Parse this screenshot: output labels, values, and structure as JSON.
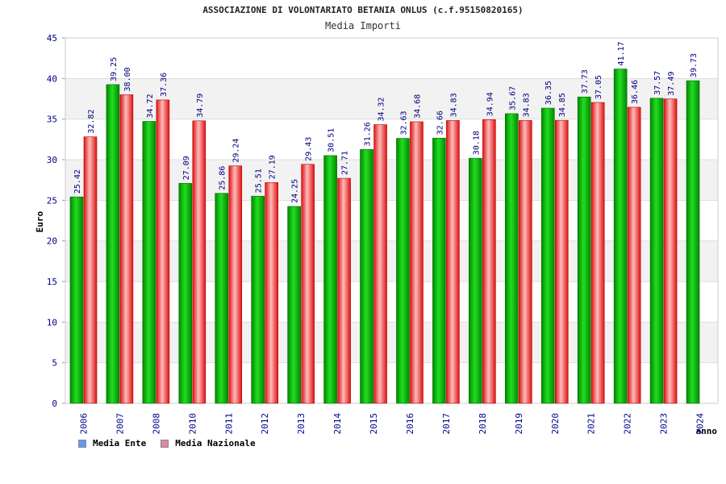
{
  "chart_data": {
    "type": "bar",
    "title": "ASSOCIAZIONE DI VOLONTARIATO BETANIA ONLUS (c.f.95150820165)",
    "subtitle": "Media Importi",
    "xlabel": "anno",
    "ylabel": "Euro",
    "ylim": [
      0,
      45
    ],
    "yticks": [
      0,
      5,
      10,
      15,
      20,
      25,
      30,
      35,
      40,
      45
    ],
    "categories": [
      "2006",
      "2007",
      "2008",
      "2010",
      "2011",
      "2012",
      "2013",
      "2014",
      "2015",
      "2016",
      "2017",
      "2018",
      "2019",
      "2020",
      "2021",
      "2022",
      "2023",
      "2024"
    ],
    "series": [
      {
        "name": "Media Ente",
        "color": "#00aa00",
        "legend_color": "#6699ee",
        "values": [
          25.42,
          39.25,
          34.72,
          27.09,
          25.86,
          25.51,
          24.25,
          30.51,
          31.26,
          32.63,
          32.66,
          30.18,
          35.67,
          36.35,
          37.73,
          41.17,
          37.57,
          39.73
        ],
        "labels": [
          "25.42",
          "39.25",
          "34.72",
          "27.09",
          "25.86",
          "25.51",
          "24.25",
          "30.51",
          "31.26",
          "32.63",
          "32.66",
          "30.18",
          "35.67",
          "36.35",
          "37.73",
          "41.17",
          "37.57",
          "39.73"
        ]
      },
      {
        "name": "Media Nazionale",
        "color": "#ee2222",
        "legend_color": "#dd88aa",
        "values": [
          32.82,
          38.0,
          37.36,
          34.79,
          29.24,
          27.19,
          29.43,
          27.71,
          34.32,
          34.68,
          34.83,
          34.94,
          34.83,
          34.85,
          37.05,
          36.46,
          37.49,
          null
        ],
        "labels": [
          "32.82",
          "38.00",
          "37.36",
          "34.79",
          "29.24",
          "27.19",
          "29.43",
          "27.71",
          "34.32",
          "34.68",
          "34.83",
          "34.94",
          "34.83",
          "34.85",
          "37.05",
          "36.46",
          "37.49",
          ""
        ]
      }
    ],
    "grid": true,
    "legend_position": "bottom-left"
  }
}
